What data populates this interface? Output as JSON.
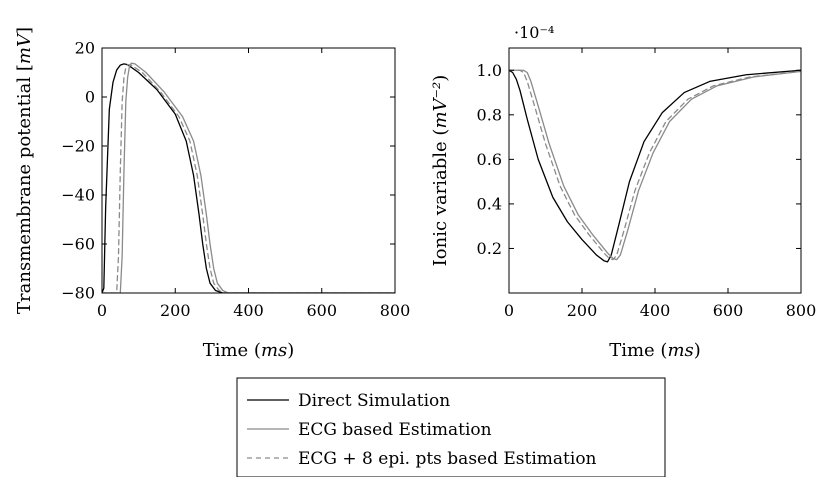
{
  "chart_data": [
    {
      "type": "line",
      "xlabel": "Time (ms)",
      "ylabel": "Transmembrane potential [mV]",
      "xlim": [
        0,
        800
      ],
      "ylim": [
        -80,
        20
      ],
      "xticks": [
        0,
        200,
        400,
        600,
        800
      ],
      "yticks": [
        -80,
        -60,
        -40,
        -20,
        0,
        20
      ],
      "xtick_labels": [
        "0",
        "200",
        "400",
        "600",
        "800"
      ],
      "ytick_labels": [
        "−80",
        "−60",
        "−40",
        "−20",
        "0",
        "20"
      ],
      "grid": false,
      "series": [
        {
          "name": "Direct Simulation",
          "color": "#000000",
          "dash": "solid",
          "x": [
            0,
            5,
            10,
            20,
            30,
            40,
            50,
            60,
            70,
            100,
            150,
            200,
            230,
            250,
            265,
            275,
            285,
            295,
            310,
            330,
            350,
            400,
            800
          ],
          "y": [
            -80,
            -78,
            -45,
            -5,
            6,
            11,
            13,
            13.5,
            13.2,
            10,
            3,
            -7,
            -18,
            -32,
            -48,
            -60,
            -70,
            -76,
            -79,
            -80,
            -80,
            -80,
            -80
          ]
        },
        {
          "name": "ECG based Estimation",
          "color": "#8a8a8a",
          "dash": "solid",
          "x": [
            0,
            50,
            55,
            60,
            65,
            70,
            75,
            80,
            90,
            120,
            170,
            220,
            250,
            270,
            285,
            295,
            305,
            315,
            330,
            345,
            360,
            400,
            800
          ],
          "y": [
            -80,
            -80,
            -65,
            -30,
            -2,
            8,
            12.5,
            13.8,
            13.5,
            10,
            2,
            -8,
            -18,
            -32,
            -48,
            -60,
            -70,
            -76,
            -79,
            -80,
            -80,
            -80,
            -80
          ]
        },
        {
          "name": "ECG + 8 epi. pts based Estimation",
          "color": "#8a8a8a",
          "dash": "dashed",
          "x": [
            0,
            40,
            45,
            50,
            55,
            60,
            65,
            70,
            80,
            110,
            160,
            210,
            240,
            260,
            275,
            285,
            295,
            305,
            320,
            335,
            350,
            400,
            800
          ],
          "y": [
            -80,
            -80,
            -65,
            -30,
            -2,
            8,
            12,
            13.2,
            13,
            10,
            2,
            -8,
            -18,
            -32,
            -48,
            -60,
            -70,
            -76,
            -79,
            -80,
            -80,
            -80,
            -80
          ]
        }
      ]
    },
    {
      "type": "line",
      "xlabel": "Time (ms)",
      "ylabel": "Ionic variable (mV⁻²)",
      "scale_label": "·10⁻⁴",
      "xlim": [
        0,
        800
      ],
      "ylim": [
        0.0,
        1.1
      ],
      "xticks": [
        0,
        200,
        400,
        600,
        800
      ],
      "yticks": [
        0.2,
        0.4,
        0.6,
        0.8,
        1.0
      ],
      "xtick_labels": [
        "0",
        "200",
        "400",
        "600",
        "800"
      ],
      "ytick_labels": [
        "0.2",
        "0.4",
        "0.6",
        "0.8",
        "1.0"
      ],
      "grid": false,
      "series": [
        {
          "name": "Direct Simulation",
          "color": "#000000",
          "dash": "solid",
          "x": [
            0,
            10,
            20,
            30,
            50,
            80,
            120,
            160,
            200,
            240,
            260,
            270,
            280,
            300,
            330,
            370,
            420,
            480,
            550,
            650,
            800
          ],
          "y": [
            1.0,
            0.99,
            0.96,
            0.91,
            0.78,
            0.6,
            0.43,
            0.32,
            0.24,
            0.17,
            0.145,
            0.14,
            0.17,
            0.3,
            0.5,
            0.68,
            0.81,
            0.9,
            0.95,
            0.98,
            1.0
          ]
        },
        {
          "name": "ECG based Estimation",
          "color": "#8a8a8a",
          "dash": "solid",
          "x": [
            0,
            40,
            50,
            60,
            80,
            110,
            150,
            190,
            230,
            270,
            285,
            295,
            305,
            325,
            355,
            395,
            440,
            500,
            570,
            670,
            800
          ],
          "y": [
            1.0,
            1.0,
            0.99,
            0.95,
            0.84,
            0.67,
            0.48,
            0.35,
            0.26,
            0.18,
            0.155,
            0.15,
            0.17,
            0.28,
            0.46,
            0.63,
            0.77,
            0.87,
            0.93,
            0.97,
            0.995
          ]
        },
        {
          "name": "ECG + 8 epi. pts based Estimation",
          "color": "#8a8a8a",
          "dash": "dashed",
          "x": [
            0,
            30,
            40,
            50,
            70,
            100,
            140,
            180,
            220,
            260,
            275,
            285,
            295,
            315,
            345,
            385,
            430,
            490,
            560,
            660,
            800
          ],
          "y": [
            1.0,
            1.0,
            0.99,
            0.95,
            0.84,
            0.67,
            0.48,
            0.35,
            0.26,
            0.18,
            0.155,
            0.15,
            0.17,
            0.28,
            0.46,
            0.63,
            0.77,
            0.87,
            0.93,
            0.97,
            0.995
          ]
        }
      ]
    }
  ],
  "legend": {
    "placement": "bottom-center",
    "entries": [
      "Direct Simulation",
      "ECG based Estimation",
      "ECG + 8 epi. pts based Estimation"
    ]
  }
}
